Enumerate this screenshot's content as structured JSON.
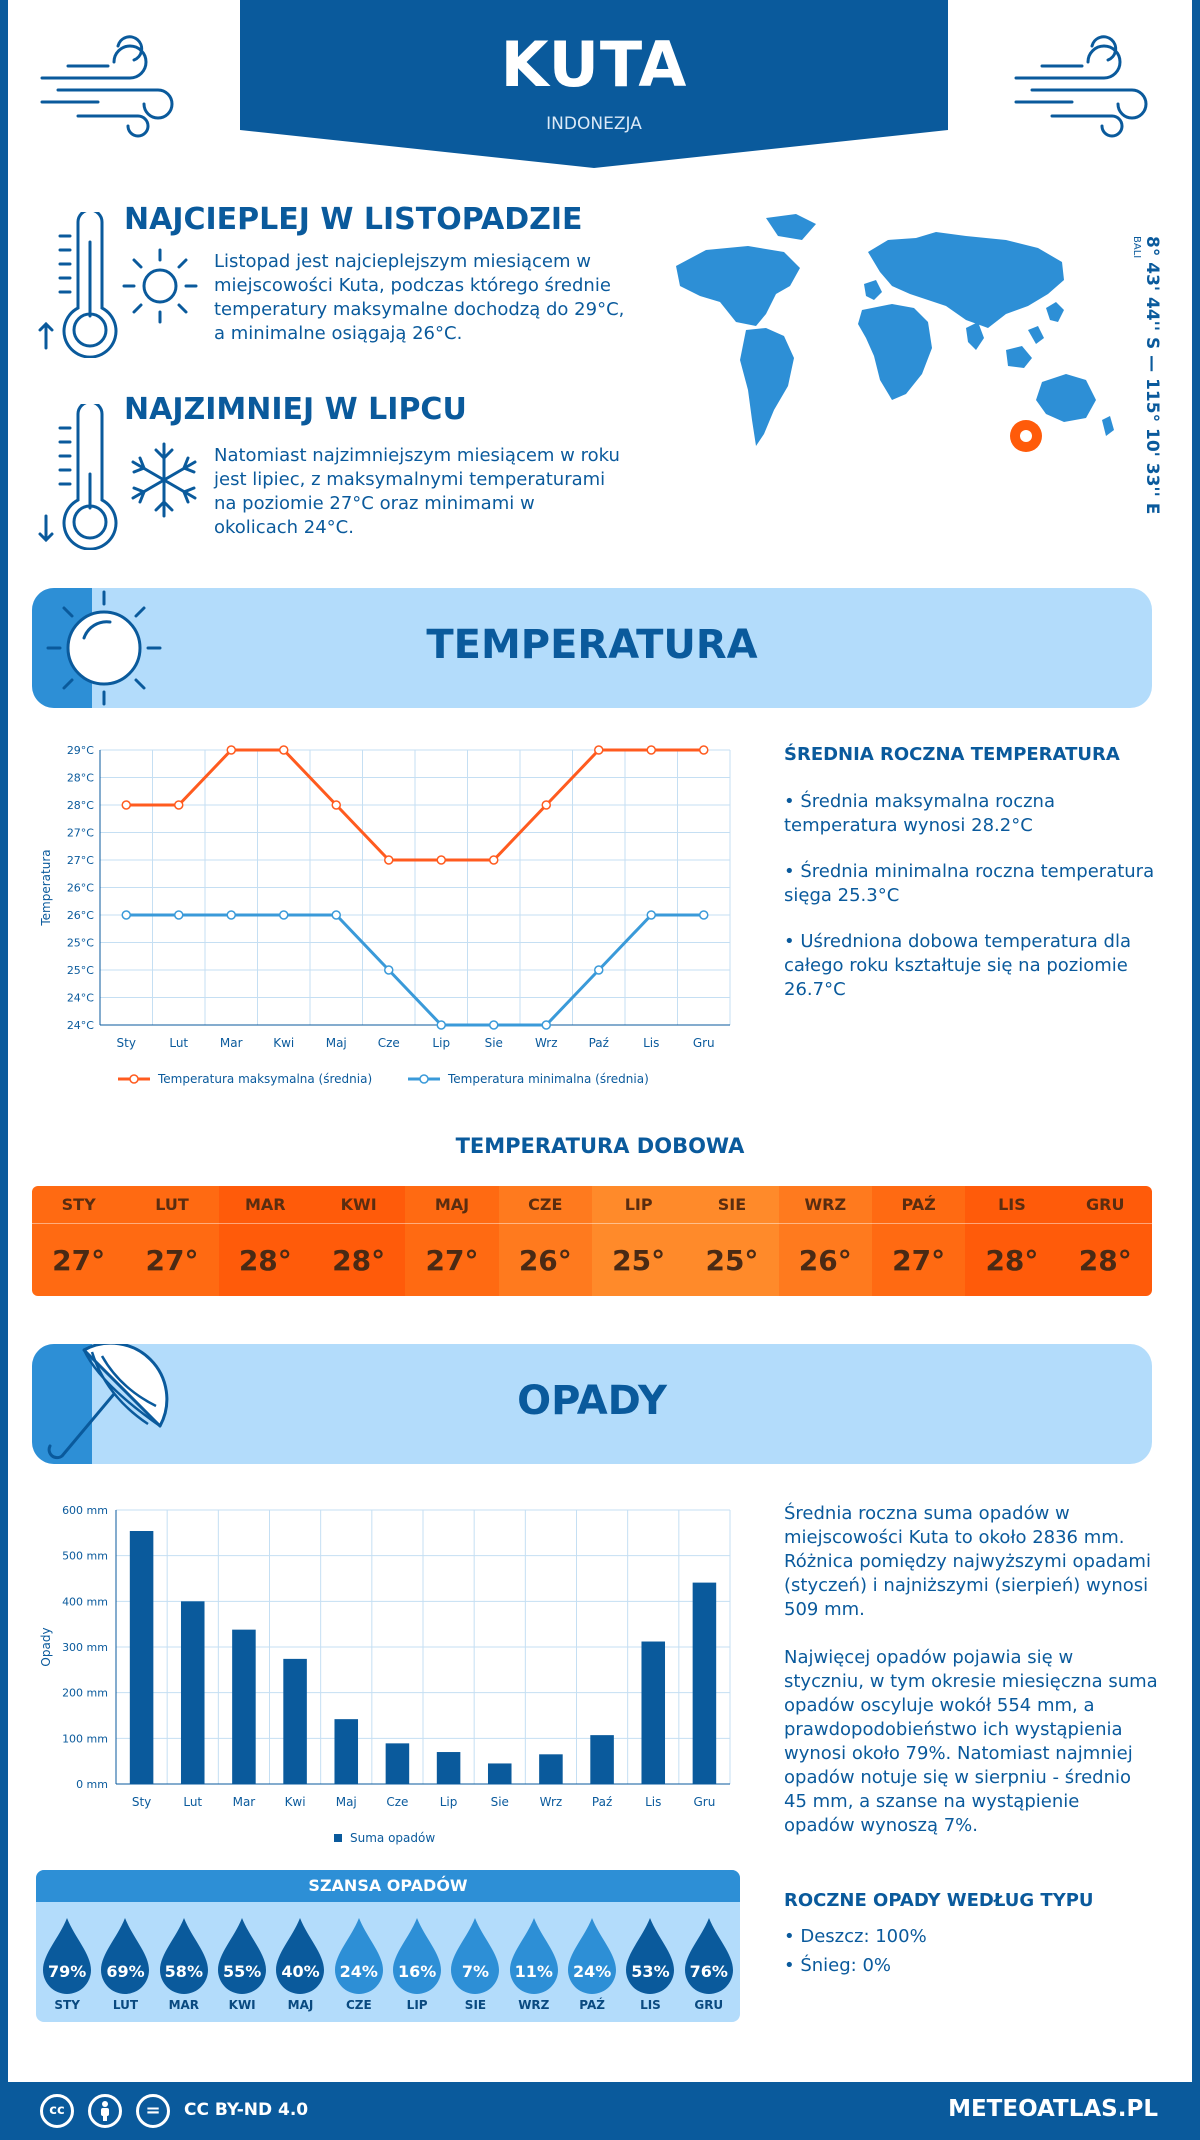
{
  "header": {
    "city": "KUTA",
    "country": "INDONEZJA"
  },
  "hottest": {
    "title": "NAJCIEPLEJ W LISTOPADZIE",
    "lines": [
      "Listopad jest najcieplejszym miesiącem w",
      "miejscowości Kuta, podczas którego średnie",
      "temperatury maksymalne dochodzą do 29°C,",
      "a minimalne osiągają 26°C."
    ]
  },
  "coldest": {
    "title": "NAJZIMNIEJ W LIPCU",
    "lines": [
      "Natomiast najzimniejszym miesiącem w roku",
      "jest lipiec, z maksymalnymi temperaturami",
      "na poziomie 27°C oraz minimami w",
      "okolicach 24°C."
    ]
  },
  "location": {
    "coords": "8° 43' 44'' S — 115° 10' 33'' E",
    "region": "BALI"
  },
  "temperature_section": {
    "title": "TEMPERATURA",
    "sidebar_title": "ŚREDNIA ROCZNA TEMPERATURA",
    "sidebar_items": [
      [
        "• Średnia maksymalna roczna",
        "temperatura wynosi 28.2°C"
      ],
      [
        "• Średnia minimalna roczna temperatura",
        "sięga 25.3°C"
      ],
      [
        "• Uśredniona dobowa temperatura dla",
        "całego roku kształtuje się na poziomie",
        "26.7°C"
      ]
    ]
  },
  "daily": {
    "title": "TEMPERATURA DOBOWA",
    "months": [
      "STY",
      "LUT",
      "MAR",
      "KWI",
      "MAJ",
      "CZE",
      "LIP",
      "SIE",
      "WRZ",
      "PAŹ",
      "LIS",
      "GRU"
    ],
    "values": [
      "27°",
      "27°",
      "28°",
      "28°",
      "27°",
      "26°",
      "25°",
      "25°",
      "26°",
      "27°",
      "28°",
      "28°"
    ],
    "colors": [
      "#ff6a12",
      "#ff6a12",
      "#ff5b0a",
      "#ff5b0a",
      "#ff6a12",
      "#ff7a1e",
      "#ff8a2a",
      "#ff8a2a",
      "#ff7a1e",
      "#ff6a12",
      "#ff5b0a",
      "#ff5b0a"
    ]
  },
  "precip_section": {
    "title": "OPADY",
    "paragraph1": [
      "Średnia roczna suma opadów w",
      "miejscowości Kuta to około 2836 mm.",
      "Różnica pomiędzy najwyższymi opadami",
      "(styczeń) i najniższymi (sierpień) wynosi",
      "509 mm."
    ],
    "paragraph2": [
      "Najwięcej opadów pojawia się w",
      "styczniu, w tym okresie miesięczna suma",
      "opadów oscyluje wokół 554 mm, a",
      "prawdopodobieństwo ich wystąpienia",
      "wynosi około 79%. Natomiast najmniej",
      "opadów notuje się w sierpniu - średnio",
      "45 mm, a szanse na wystąpienie",
      "opadów wynoszą 7%."
    ],
    "type_title": "ROCZNE OPADY WEDŁUG TYPU",
    "type_items": [
      "• Deszcz: 100%",
      "• Śnieg: 0%"
    ]
  },
  "chance": {
    "title": "SZANSA OPADÓW",
    "months": [
      "STY",
      "LUT",
      "MAR",
      "KWI",
      "MAJ",
      "CZE",
      "LIP",
      "SIE",
      "WRZ",
      "PAŹ",
      "LIS",
      "GRU"
    ],
    "values": [
      "79%",
      "69%",
      "58%",
      "55%",
      "40%",
      "24%",
      "16%",
      "7%",
      "11%",
      "24%",
      "53%",
      "76%"
    ],
    "colors": [
      "#0a5a9c",
      "#0a5a9c",
      "#0a5a9c",
      "#0a5a9c",
      "#0a5a9c",
      "#2d8fd6",
      "#2d8fd6",
      "#2d8fd6",
      "#2d8fd6",
      "#2d8fd6",
      "#0a5a9c",
      "#0a5a9c"
    ]
  },
  "footer": {
    "license": "CC BY-ND 4.0",
    "brand": "METEOATLAS.PL",
    "cc": "cc",
    "eq": "="
  },
  "chart_data": [
    {
      "type": "line",
      "categories": [
        "Sty",
        "Lut",
        "Mar",
        "Kwi",
        "Maj",
        "Cze",
        "Lip",
        "Sie",
        "Wrz",
        "Paź",
        "Lis",
        "Gru"
      ],
      "series": [
        {
          "name": "Temperatura maksymalna (średnia)",
          "values": [
            28,
            28,
            29,
            29,
            28,
            27,
            27,
            27,
            28,
            29,
            29,
            29
          ],
          "color": "#ff5b1f"
        },
        {
          "name": "Temperatura minimalna (średnia)",
          "values": [
            26,
            26,
            26,
            26,
            26,
            25,
            24,
            24,
            24,
            25,
            26,
            26
          ],
          "color": "#3a9ad9"
        }
      ],
      "ylabel": "Temperatura",
      "y_ticks": [
        "24°C",
        "24°C",
        "25°C",
        "25°C",
        "26°C",
        "26°C",
        "27°C",
        "27°C",
        "28°C",
        "28°C",
        "29°C"
      ],
      "ylim": [
        24,
        29
      ],
      "grid": true,
      "legend": "bottom"
    },
    {
      "type": "bar",
      "categories": [
        "Sty",
        "Lut",
        "Mar",
        "Kwi",
        "Maj",
        "Cze",
        "Lip",
        "Sie",
        "Wrz",
        "Paź",
        "Lis",
        "Gru"
      ],
      "series": [
        {
          "name": "Suma opadów",
          "values": [
            554,
            400,
            338,
            274,
            142,
            89,
            70,
            45,
            65,
            107,
            312,
            441
          ],
          "color": "#0a5a9c"
        }
      ],
      "ylabel": "Opady",
      "y_ticks": [
        "0 mm",
        "100 mm",
        "200 mm",
        "300 mm",
        "400 mm",
        "500 mm",
        "600 mm"
      ],
      "ylim": [
        0,
        600
      ],
      "grid": true,
      "legend": "bottom"
    }
  ]
}
